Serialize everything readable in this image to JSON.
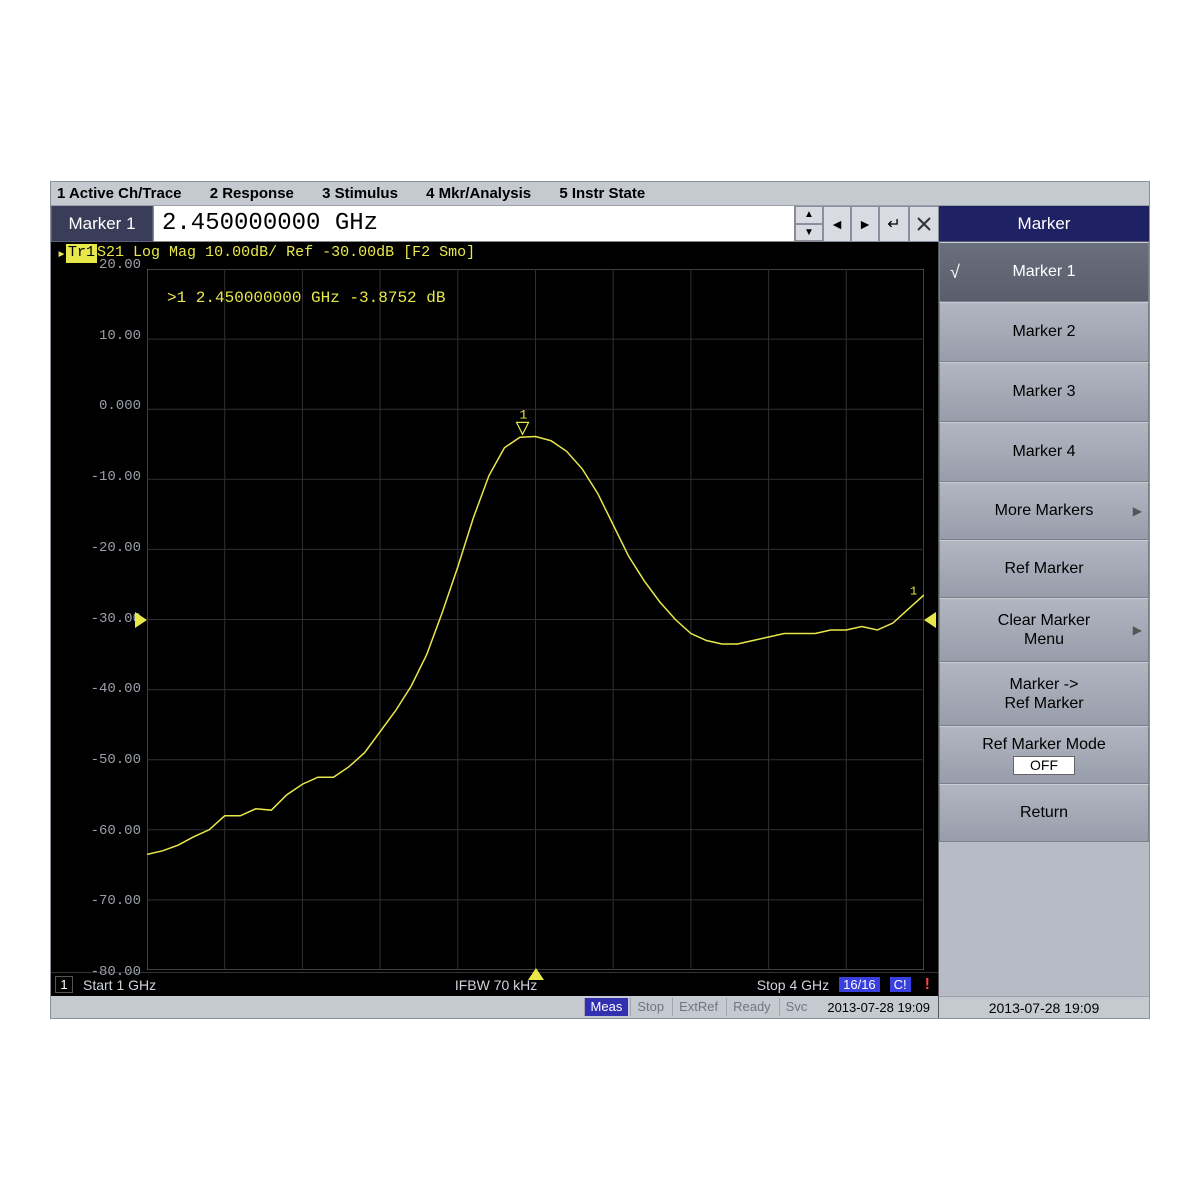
{
  "menu": {
    "items": [
      "1 Active Ch/Trace",
      "2 Response",
      "3 Stimulus",
      "4 Mkr/Analysis",
      "5 Instr State"
    ]
  },
  "markerBar": {
    "label": "Marker 1",
    "value": "2.450000000 GHz"
  },
  "trace": {
    "tag": "Tr1",
    "header": " S21 Log Mag 10.00dB/ Ref -30.00dB [F2 Smo]",
    "marker_readout": ">1  2.450000000 GHz -3.8752 dB"
  },
  "chart": {
    "type": "line",
    "y_labels": [
      "20.00",
      "10.00",
      "0.000",
      "-10.00",
      "-20.00",
      "-30.00",
      "-40.00",
      "-50.00",
      "-60.00",
      "-70.00",
      "-80.00"
    ],
    "ylim": [
      -80,
      20
    ],
    "ytick_step": 10,
    "x_divisions": 10,
    "xlim_ghz": [
      1,
      4
    ],
    "ref_level_db": -30,
    "marker_x_ghz": 2.45,
    "marker_y_db": -3.8752,
    "grid_color": "#303030",
    "trace_color": "#e8e84a",
    "background_color": "#000000",
    "axis_text_color": "#9a9ea8",
    "points_ghz_db": [
      [
        1.0,
        -63.5
      ],
      [
        1.06,
        -63.0
      ],
      [
        1.12,
        -62.2
      ],
      [
        1.18,
        -61.0
      ],
      [
        1.24,
        -60.0
      ],
      [
        1.3,
        -58.0
      ],
      [
        1.36,
        -58.0
      ],
      [
        1.42,
        -57.0
      ],
      [
        1.48,
        -57.2
      ],
      [
        1.54,
        -55.0
      ],
      [
        1.6,
        -53.5
      ],
      [
        1.66,
        -52.5
      ],
      [
        1.72,
        -52.5
      ],
      [
        1.78,
        -51.0
      ],
      [
        1.84,
        -49.0
      ],
      [
        1.9,
        -46.0
      ],
      [
        1.96,
        -43.0
      ],
      [
        2.02,
        -39.5
      ],
      [
        2.08,
        -35.0
      ],
      [
        2.14,
        -29.0
      ],
      [
        2.2,
        -22.5
      ],
      [
        2.26,
        -15.5
      ],
      [
        2.32,
        -9.5
      ],
      [
        2.38,
        -5.5
      ],
      [
        2.44,
        -4.0
      ],
      [
        2.5,
        -3.9
      ],
      [
        2.56,
        -4.5
      ],
      [
        2.62,
        -6.0
      ],
      [
        2.68,
        -8.5
      ],
      [
        2.74,
        -12.0
      ],
      [
        2.8,
        -16.5
      ],
      [
        2.86,
        -21.0
      ],
      [
        2.92,
        -24.5
      ],
      [
        2.98,
        -27.5
      ],
      [
        3.04,
        -30.0
      ],
      [
        3.1,
        -32.0
      ],
      [
        3.16,
        -33.0
      ],
      [
        3.22,
        -33.5
      ],
      [
        3.28,
        -33.5
      ],
      [
        3.34,
        -33.0
      ],
      [
        3.4,
        -32.5
      ],
      [
        3.46,
        -32.0
      ],
      [
        3.52,
        -32.0
      ],
      [
        3.58,
        -32.0
      ],
      [
        3.64,
        -31.5
      ],
      [
        3.7,
        -31.5
      ],
      [
        3.76,
        -31.0
      ],
      [
        3.82,
        -31.5
      ],
      [
        3.88,
        -30.5
      ],
      [
        3.94,
        -28.5
      ],
      [
        4.0,
        -26.5
      ]
    ]
  },
  "bottom": {
    "ch": "1",
    "start": "Start 1 GHz",
    "ifbw": "IFBW 70 kHz",
    "stop": "Stop 4 GHz",
    "sweep": "16/16",
    "corr": "C!",
    "caution": "!"
  },
  "status": {
    "items": [
      "Meas",
      "Stop",
      "ExtRef",
      "Ready",
      "Svc"
    ],
    "datetime": "2013-07-28 19:09"
  },
  "side": {
    "header": "Marker",
    "buttons": [
      {
        "label": "Marker 1",
        "selected": true,
        "check": true
      },
      {
        "label": "Marker 2"
      },
      {
        "label": "Marker 3"
      },
      {
        "label": "Marker 4"
      },
      {
        "label": "More Markers",
        "chev": true
      },
      {
        "label": "Ref Marker"
      },
      {
        "label": "Clear Marker Menu",
        "two": true,
        "chev": true
      },
      {
        "label": "Marker -> Ref Marker",
        "two": true
      },
      {
        "label": "Ref Marker Mode",
        "mode": "OFF"
      },
      {
        "label": "Return"
      }
    ]
  }
}
